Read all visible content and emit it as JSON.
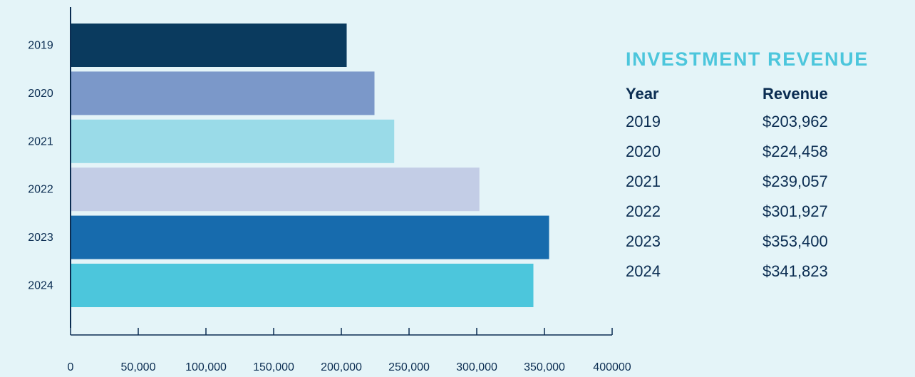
{
  "chart_data": {
    "type": "bar",
    "orientation": "horizontal",
    "categories": [
      "2019",
      "2020",
      "2021",
      "2022",
      "2023",
      "2024"
    ],
    "values": [
      203962,
      224458,
      239057,
      301927,
      353400,
      341823
    ],
    "colors": [
      "#0a3a5e",
      "#7b98c9",
      "#9adbe8",
      "#c3cde6",
      "#176bad",
      "#4cc6dc"
    ],
    "x_ticks": [
      "0",
      "50,000",
      "100,000",
      "150,000",
      "200,000",
      "250,000",
      "300,000",
      "350,000",
      "400000"
    ],
    "xlim": [
      0,
      400000
    ],
    "grid": false,
    "legend": "none"
  },
  "panel": {
    "title": "INVESTMENT REVENUE",
    "headers": {
      "year": "Year",
      "revenue": "Revenue"
    },
    "rows": [
      {
        "year": "2019",
        "revenue": "$203,962"
      },
      {
        "year": "2020",
        "revenue": "$224,458"
      },
      {
        "year": "2021",
        "revenue": "$239,057"
      },
      {
        "year": "2022",
        "revenue": "$301,927"
      },
      {
        "year": "2023",
        "revenue": "$353,400"
      },
      {
        "year": "2024",
        "revenue": "$341,823"
      }
    ]
  },
  "theme": {
    "background": "#e4f4f8",
    "text": "#0b2d52",
    "accent": "#4cc6dc",
    "axis": "#0b2d52"
  }
}
